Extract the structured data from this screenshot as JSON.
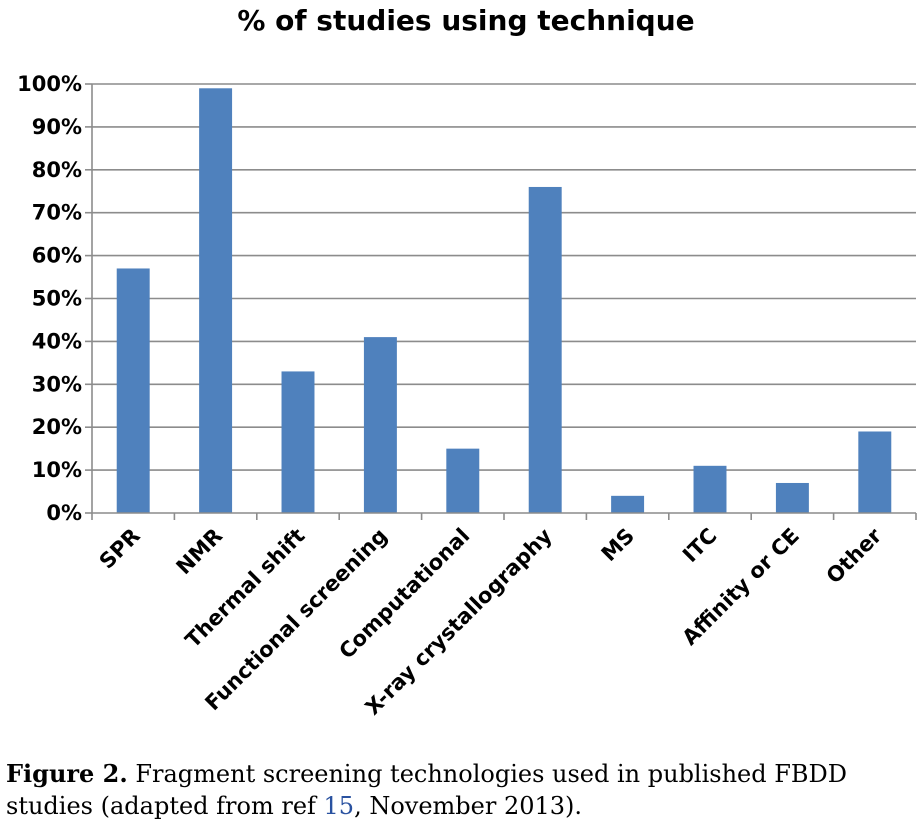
{
  "chart_data": {
    "type": "bar",
    "title": "% of studies using technique",
    "categories": [
      "SPR",
      "NMR",
      "Thermal shift",
      "Functional screening",
      "Computational",
      "X-ray crystallography",
      "MS",
      "ITC",
      "Affinity or CE",
      "Other"
    ],
    "values": [
      57,
      99,
      33,
      41,
      15,
      76,
      4,
      11,
      7,
      19
    ],
    "ylim": [
      0,
      100
    ],
    "yticks": [
      0,
      10,
      20,
      30,
      40,
      50,
      60,
      70,
      80,
      90,
      100
    ],
    "ytick_labels": [
      "0%",
      "10%",
      "20%",
      "30%",
      "40%",
      "50%",
      "60%",
      "70%",
      "80%",
      "90%",
      "100%"
    ],
    "xlabel": "",
    "ylabel": "",
    "grid": true,
    "bar_color": "#4f81bd"
  },
  "caption": {
    "label": "Figure 2.",
    "text_before": " Fragment screening technologies used in published FBDD studies (adapted from ref ",
    "ref_number": "15",
    "text_after": ", November 2013)."
  }
}
